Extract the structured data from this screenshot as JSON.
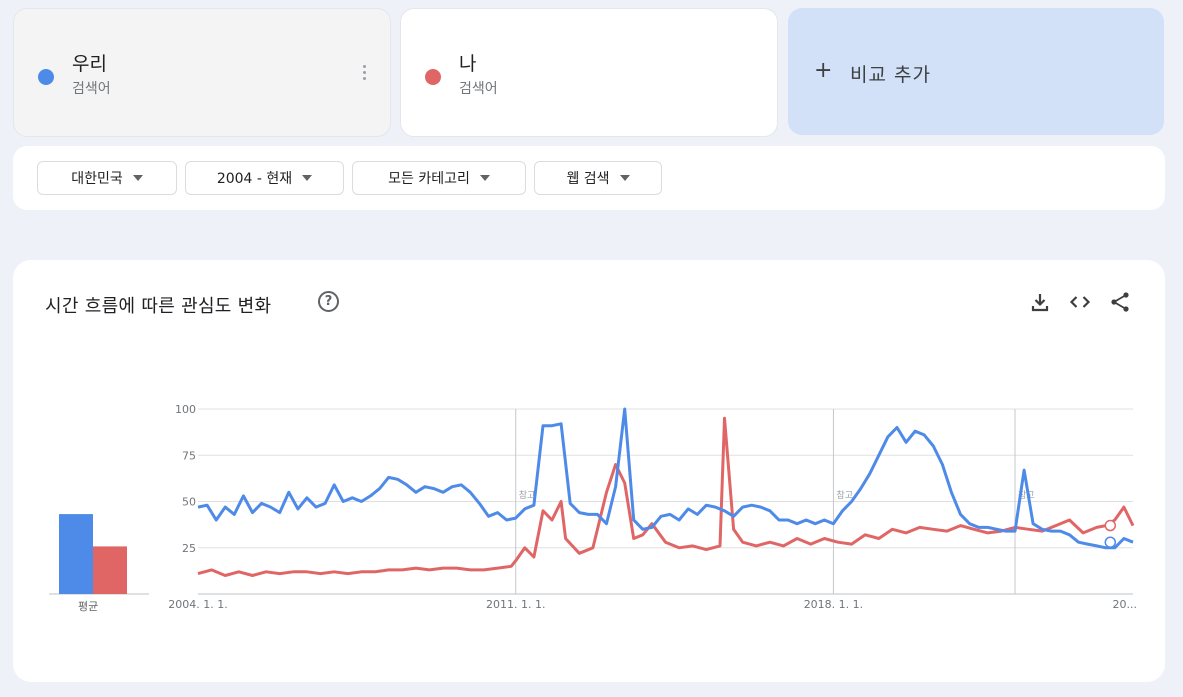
{
  "terms": [
    {
      "name": "우리",
      "type": "검색어",
      "color": "#4e8ae8"
    },
    {
      "name": "나",
      "type": "검색어",
      "color": "#e06666"
    }
  ],
  "add_compare": {
    "label": "비교 추가"
  },
  "filters": {
    "region": "대한민국",
    "period": "2004 - 현재",
    "category": "모든 카테고리",
    "search_type": "웹 검색"
  },
  "chart_card": {
    "title": "시간 흐름에 따른 관심도 변화",
    "icons": [
      "help-icon",
      "download-icon",
      "embed-icon",
      "share-icon"
    ]
  },
  "averages": {
    "label": "평균",
    "values": [
      47,
      28
    ]
  },
  "chart_data": {
    "type": "line",
    "title": "시간 흐름에 따른 관심도 변화",
    "x_range": [
      2004.0,
      2024.6
    ],
    "ylim": [
      0,
      100
    ],
    "y_ticks": [
      25,
      50,
      75,
      100
    ],
    "x_tick_labels": [
      {
        "x": 2004.0,
        "label": "2004. 1. 1."
      },
      {
        "x": 2011.0,
        "label": "2011. 1. 1."
      },
      {
        "x": 2018.0,
        "label": "2018. 1. 1."
      },
      {
        "x": 2024.6,
        "label": "20..."
      }
    ],
    "annotation_lines": [
      2011.0,
      2018.0,
      2022.0
    ],
    "annotation_notes": [
      {
        "x": 2011.0,
        "label": "참고"
      },
      {
        "x": 2018.0,
        "label": "참고"
      },
      {
        "x": 2022.0,
        "label": "참고"
      }
    ],
    "grid": true,
    "series": [
      {
        "name": "우리",
        "color": "#4e8ae8",
        "points": [
          [
            2004.0,
            47
          ],
          [
            2004.2,
            48
          ],
          [
            2004.4,
            40
          ],
          [
            2004.6,
            47
          ],
          [
            2004.8,
            43
          ],
          [
            2005.0,
            53
          ],
          [
            2005.2,
            44
          ],
          [
            2005.4,
            49
          ],
          [
            2005.6,
            47
          ],
          [
            2005.8,
            44
          ],
          [
            2006.0,
            55
          ],
          [
            2006.2,
            46
          ],
          [
            2006.4,
            52
          ],
          [
            2006.6,
            47
          ],
          [
            2006.8,
            49
          ],
          [
            2007.0,
            59
          ],
          [
            2007.2,
            50
          ],
          [
            2007.4,
            52
          ],
          [
            2007.6,
            50
          ],
          [
            2007.8,
            53
          ],
          [
            2008.0,
            57
          ],
          [
            2008.2,
            63
          ],
          [
            2008.4,
            62
          ],
          [
            2008.6,
            59
          ],
          [
            2008.8,
            55
          ],
          [
            2009.0,
            58
          ],
          [
            2009.2,
            57
          ],
          [
            2009.4,
            55
          ],
          [
            2009.6,
            58
          ],
          [
            2009.8,
            59
          ],
          [
            2010.0,
            55
          ],
          [
            2010.2,
            49
          ],
          [
            2010.4,
            42
          ],
          [
            2010.6,
            44
          ],
          [
            2010.8,
            40
          ],
          [
            2011.0,
            41
          ],
          [
            2011.2,
            46
          ],
          [
            2011.4,
            48
          ],
          [
            2011.6,
            91
          ],
          [
            2011.8,
            91
          ],
          [
            2012.0,
            92
          ],
          [
            2012.2,
            49
          ],
          [
            2012.4,
            44
          ],
          [
            2012.6,
            43
          ],
          [
            2012.8,
            43
          ],
          [
            2013.0,
            38
          ],
          [
            2013.2,
            58
          ],
          [
            2013.4,
            100
          ],
          [
            2013.6,
            40
          ],
          [
            2013.8,
            35
          ],
          [
            2014.0,
            36
          ],
          [
            2014.2,
            42
          ],
          [
            2014.4,
            43
          ],
          [
            2014.6,
            40
          ],
          [
            2014.8,
            46
          ],
          [
            2015.0,
            43
          ],
          [
            2015.2,
            48
          ],
          [
            2015.4,
            47
          ],
          [
            2015.6,
            45
          ],
          [
            2015.8,
            42
          ],
          [
            2016.0,
            47
          ],
          [
            2016.2,
            48
          ],
          [
            2016.4,
            47
          ],
          [
            2016.6,
            45
          ],
          [
            2016.8,
            40
          ],
          [
            2017.0,
            40
          ],
          [
            2017.2,
            38
          ],
          [
            2017.4,
            40
          ],
          [
            2017.6,
            38
          ],
          [
            2017.8,
            40
          ],
          [
            2018.0,
            38
          ],
          [
            2018.2,
            45
          ],
          [
            2018.4,
            50
          ],
          [
            2018.6,
            57
          ],
          [
            2018.8,
            65
          ],
          [
            2019.0,
            75
          ],
          [
            2019.2,
            85
          ],
          [
            2019.4,
            90
          ],
          [
            2019.6,
            82
          ],
          [
            2019.8,
            88
          ],
          [
            2020.0,
            86
          ],
          [
            2020.2,
            80
          ],
          [
            2020.4,
            70
          ],
          [
            2020.6,
            55
          ],
          [
            2020.8,
            43
          ],
          [
            2021.0,
            38
          ],
          [
            2021.2,
            36
          ],
          [
            2021.4,
            36
          ],
          [
            2021.6,
            35
          ],
          [
            2021.8,
            34
          ],
          [
            2022.0,
            34
          ],
          [
            2022.2,
            67
          ],
          [
            2022.4,
            38
          ],
          [
            2022.6,
            35
          ],
          [
            2022.8,
            34
          ],
          [
            2023.0,
            34
          ],
          [
            2023.2,
            32
          ],
          [
            2023.4,
            28
          ],
          [
            2023.6,
            27
          ],
          [
            2023.8,
            26
          ],
          [
            2024.0,
            25
          ],
          [
            2024.2,
            25
          ],
          [
            2024.4,
            30
          ],
          [
            2024.6,
            28
          ]
        ]
      },
      {
        "name": "나",
        "color": "#e06666",
        "points": [
          [
            2004.0,
            11
          ],
          [
            2004.3,
            13
          ],
          [
            2004.6,
            10
          ],
          [
            2004.9,
            12
          ],
          [
            2005.2,
            10
          ],
          [
            2005.5,
            12
          ],
          [
            2005.8,
            11
          ],
          [
            2006.1,
            12
          ],
          [
            2006.4,
            12
          ],
          [
            2006.7,
            11
          ],
          [
            2007.0,
            12
          ],
          [
            2007.3,
            11
          ],
          [
            2007.6,
            12
          ],
          [
            2007.9,
            12
          ],
          [
            2008.2,
            13
          ],
          [
            2008.5,
            13
          ],
          [
            2008.8,
            14
          ],
          [
            2009.1,
            13
          ],
          [
            2009.4,
            14
          ],
          [
            2009.7,
            14
          ],
          [
            2010.0,
            13
          ],
          [
            2010.3,
            13
          ],
          [
            2010.6,
            14
          ],
          [
            2010.9,
            15
          ],
          [
            2011.0,
            18
          ],
          [
            2011.2,
            25
          ],
          [
            2011.4,
            20
          ],
          [
            2011.6,
            45
          ],
          [
            2011.8,
            40
          ],
          [
            2012.0,
            50
          ],
          [
            2012.1,
            30
          ],
          [
            2012.4,
            22
          ],
          [
            2012.7,
            25
          ],
          [
            2013.0,
            55
          ],
          [
            2013.2,
            70
          ],
          [
            2013.4,
            60
          ],
          [
            2013.6,
            30
          ],
          [
            2013.8,
            32
          ],
          [
            2014.0,
            38
          ],
          [
            2014.3,
            28
          ],
          [
            2014.6,
            25
          ],
          [
            2014.9,
            26
          ],
          [
            2015.2,
            24
          ],
          [
            2015.5,
            26
          ],
          [
            2015.6,
            95
          ],
          [
            2015.8,
            35
          ],
          [
            2016.0,
            28
          ],
          [
            2016.3,
            26
          ],
          [
            2016.6,
            28
          ],
          [
            2016.9,
            26
          ],
          [
            2017.2,
            30
          ],
          [
            2017.5,
            27
          ],
          [
            2017.8,
            30
          ],
          [
            2018.1,
            28
          ],
          [
            2018.4,
            27
          ],
          [
            2018.7,
            32
          ],
          [
            2019.0,
            30
          ],
          [
            2019.3,
            35
          ],
          [
            2019.6,
            33
          ],
          [
            2019.9,
            36
          ],
          [
            2020.2,
            35
          ],
          [
            2020.5,
            34
          ],
          [
            2020.8,
            37
          ],
          [
            2021.1,
            35
          ],
          [
            2021.4,
            33
          ],
          [
            2021.7,
            34
          ],
          [
            2022.0,
            36
          ],
          [
            2022.3,
            35
          ],
          [
            2022.6,
            34
          ],
          [
            2022.9,
            37
          ],
          [
            2023.2,
            40
          ],
          [
            2023.5,
            33
          ],
          [
            2023.8,
            36
          ],
          [
            2024.0,
            37
          ],
          [
            2024.2,
            40
          ],
          [
            2024.4,
            47
          ],
          [
            2024.6,
            37
          ]
        ]
      }
    ]
  }
}
